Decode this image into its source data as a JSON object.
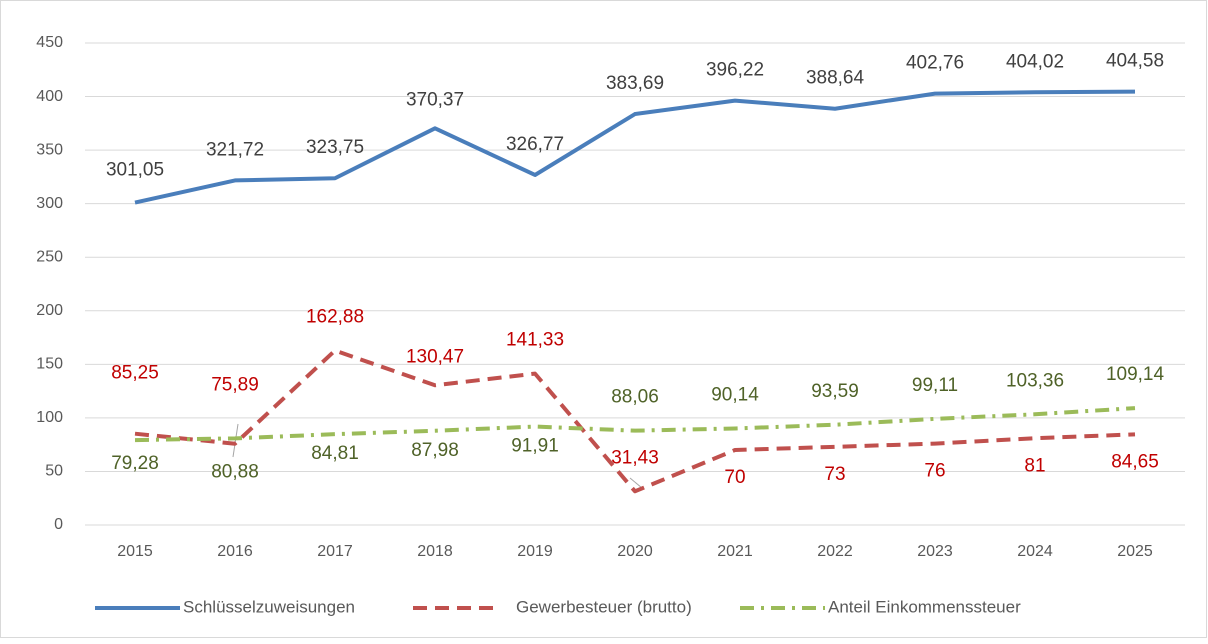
{
  "chart_data": {
    "type": "line",
    "categories": [
      "2015",
      "2016",
      "2017",
      "2018",
      "2019",
      "2020",
      "2021",
      "2022",
      "2023",
      "2024",
      "2025"
    ],
    "series": [
      {
        "name": "Schlüsselzuweisungen",
        "color": "#4a7ebb",
        "line_style": "solid",
        "label_color": "#404040",
        "values": [
          301.05,
          321.72,
          323.75,
          370.37,
          326.77,
          383.69,
          396.22,
          388.64,
          402.76,
          404.02,
          404.58
        ],
        "value_labels": [
          "301,05",
          "321,72",
          "323,75",
          "370,37",
          "326,77",
          "383,69",
          "396,22",
          "388,64",
          "402,76",
          "404,02",
          "404,58"
        ]
      },
      {
        "name": "Gewerbesteuer (brutto)",
        "color": "#c0504d",
        "line_style": "dashed",
        "label_color": "#c00000",
        "values": [
          85.25,
          75.89,
          162.88,
          130.47,
          141.33,
          31.43,
          70,
          73,
          76,
          81,
          84.65
        ],
        "value_labels": [
          "85,25",
          "75,89",
          "162,88",
          "130,47",
          "141,33",
          "31,43",
          "70",
          "73",
          "76",
          "81",
          "84,65"
        ]
      },
      {
        "name": "Anteil Einkommenssteuer",
        "color": "#9bbb59",
        "line_style": "dashdot",
        "label_color": "#4f6228",
        "values": [
          79.28,
          80.88,
          84.81,
          87.98,
          91.91,
          88.06,
          90.14,
          93.59,
          99.11,
          103.36,
          109.14
        ],
        "value_labels": [
          "79,28",
          "80,88",
          "84,81",
          "87,98",
          "91,91",
          "88,06",
          "90,14",
          "93,59",
          "99,11",
          "103,36",
          "109,14"
        ]
      }
    ],
    "ylim": [
      0,
      450
    ],
    "yticks": [
      0,
      50,
      100,
      150,
      200,
      250,
      300,
      350,
      400,
      450
    ],
    "grid": true,
    "legend": "bottom"
  }
}
